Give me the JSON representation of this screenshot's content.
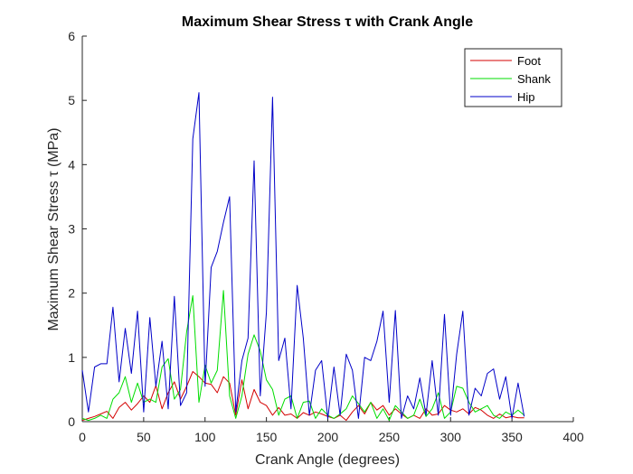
{
  "chart_data": {
    "type": "line",
    "title": "Maximum Shear Stress τ with Crank Angle",
    "xlabel": "Crank Angle (degrees)",
    "ylabel": "Maximum Shear Stress τ (MPa)",
    "xlim": [
      0,
      400
    ],
    "ylim": [
      0,
      6
    ],
    "xticks": [
      "0",
      "50",
      "100",
      "150",
      "200",
      "250",
      "300",
      "350",
      "400"
    ],
    "yticks": [
      "0",
      "1",
      "2",
      "3",
      "4",
      "5",
      "6"
    ],
    "grid": false,
    "legend_position": "top-right",
    "x": [
      0,
      5,
      10,
      15,
      20,
      25,
      30,
      35,
      40,
      45,
      50,
      55,
      60,
      65,
      70,
      75,
      80,
      85,
      90,
      95,
      100,
      105,
      110,
      115,
      120,
      125,
      130,
      135,
      140,
      145,
      150,
      155,
      160,
      165,
      170,
      175,
      180,
      185,
      190,
      195,
      200,
      205,
      210,
      215,
      220,
      225,
      230,
      235,
      240,
      245,
      250,
      255,
      260,
      265,
      270,
      275,
      280,
      285,
      290,
      295,
      300,
      305,
      310,
      315,
      320,
      325,
      330,
      335,
      340,
      345,
      350,
      355,
      360
    ],
    "series": [
      {
        "name": "Foot",
        "color": "#d40000",
        "values": [
          0.02,
          0.05,
          0.08,
          0.12,
          0.16,
          0.05,
          0.22,
          0.3,
          0.18,
          0.28,
          0.4,
          0.3,
          0.56,
          0.2,
          0.45,
          0.62,
          0.35,
          0.55,
          0.78,
          0.7,
          0.6,
          0.58,
          0.45,
          0.7,
          0.6,
          0.1,
          0.65,
          0.2,
          0.5,
          0.3,
          0.25,
          0.1,
          0.22,
          0.1,
          0.12,
          0.05,
          0.14,
          0.1,
          0.15,
          0.12,
          0.08,
          0.05,
          0.1,
          0.02,
          0.15,
          0.25,
          0.12,
          0.3,
          0.18,
          0.25,
          0.1,
          0.2,
          0.12,
          0.05,
          0.1,
          0.05,
          0.2,
          0.1,
          0.12,
          0.25,
          0.18,
          0.15,
          0.2,
          0.12,
          0.22,
          0.18,
          0.1,
          0.05,
          0.12,
          0.06,
          0.08,
          0.06,
          0.06
        ]
      },
      {
        "name": "Shank",
        "color": "#00dd00",
        "values": [
          0.05,
          0.02,
          0.05,
          0.1,
          0.05,
          0.35,
          0.45,
          0.7,
          0.3,
          0.6,
          0.3,
          0.35,
          0.3,
          0.85,
          0.98,
          0.35,
          0.5,
          1.4,
          1.96,
          0.3,
          0.88,
          0.6,
          0.8,
          2.04,
          0.4,
          0.05,
          0.4,
          1.05,
          1.35,
          1.1,
          0.65,
          0.5,
          0.1,
          0.35,
          0.4,
          0.05,
          0.3,
          0.32,
          0.05,
          0.2,
          0.1,
          0.05,
          0.12,
          0.2,
          0.4,
          0.28,
          0.15,
          0.3,
          0.05,
          0.2,
          0.02,
          0.25,
          0.15,
          0.05,
          0.1,
          0.35,
          0.08,
          0.2,
          0.45,
          0.05,
          0.15,
          0.55,
          0.52,
          0.3,
          0.15,
          0.2,
          0.25,
          0.1,
          0.05,
          0.15,
          0.1,
          0.18,
          0.1
        ]
      },
      {
        "name": "Hip",
        "color": "#0000c8",
        "values": [
          0.8,
          0.15,
          0.85,
          0.9,
          0.9,
          1.78,
          0.62,
          1.45,
          0.75,
          1.72,
          0.15,
          1.62,
          0.55,
          1.25,
          0.2,
          1.95,
          0.25,
          0.45,
          4.4,
          5.12,
          0.55,
          2.4,
          2.65,
          3.1,
          3.5,
          0.15,
          0.95,
          1.3,
          4.06,
          0.4,
          1.7,
          5.05,
          0.95,
          1.3,
          0.2,
          2.12,
          1.3,
          0.1,
          0.8,
          0.95,
          0.05,
          0.85,
          0.1,
          1.05,
          0.8,
          0.05,
          1.0,
          0.95,
          1.25,
          1.72,
          0.3,
          1.73,
          0.05,
          0.4,
          0.2,
          0.68,
          0.1,
          0.95,
          0.1,
          1.67,
          0.1,
          1.05,
          1.72,
          0.1,
          0.52,
          0.4,
          0.75,
          0.82,
          0.35,
          0.7,
          0.05,
          0.6,
          0.08
        ]
      }
    ]
  }
}
